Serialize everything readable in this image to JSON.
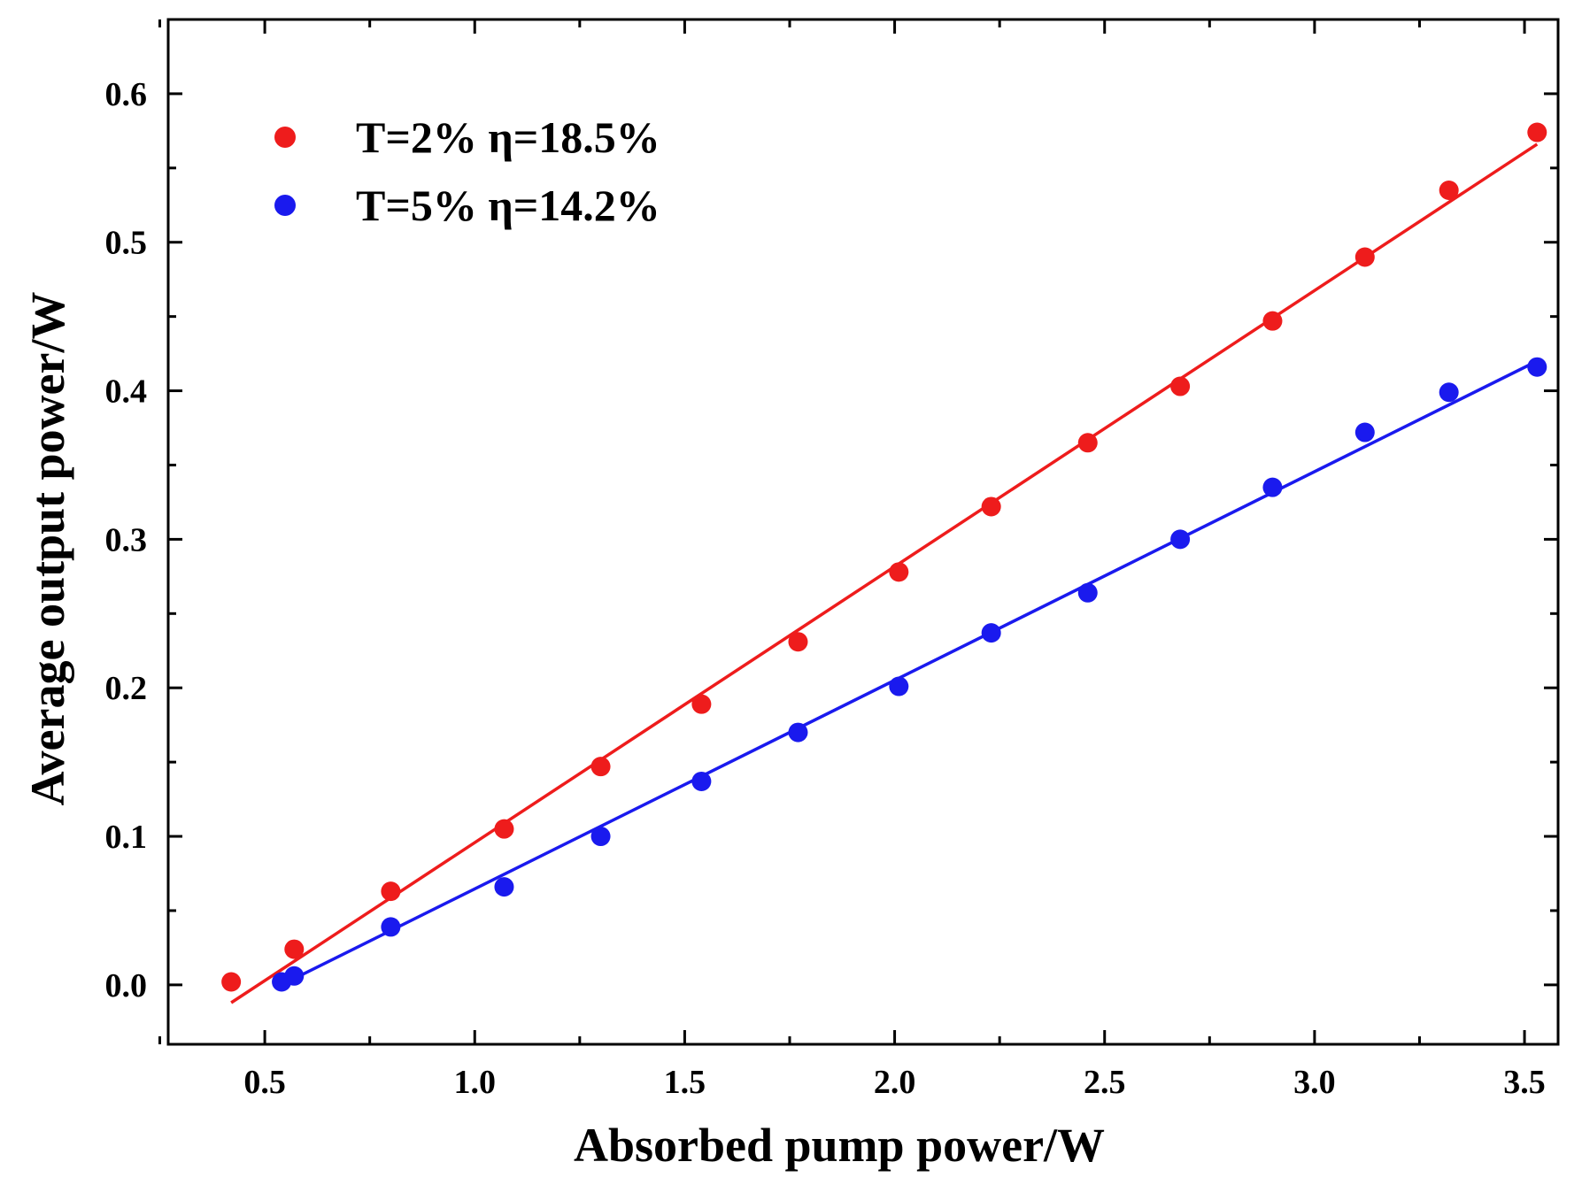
{
  "chart_data": {
    "type": "scatter",
    "title": "",
    "xlabel": "Absorbed pump power/W",
    "ylabel": "Average output power/W",
    "xlim": [
      0.27,
      3.58
    ],
    "ylim": [
      -0.04,
      0.65
    ],
    "x_ticks": [
      0.5,
      1.0,
      1.5,
      2.0,
      2.5,
      3.0,
      3.5
    ],
    "x_tick_labels": [
      "0.5",
      "1.0",
      "1.5",
      "2.0",
      "2.5",
      "3.0",
      "3.5"
    ],
    "y_ticks": [
      0.0,
      0.1,
      0.2,
      0.3,
      0.4,
      0.5,
      0.6
    ],
    "y_tick_labels": [
      "0.0",
      "0.1",
      "0.2",
      "0.3",
      "0.4",
      "0.5",
      "0.6"
    ],
    "grid": false,
    "legend_position": "top-left",
    "series": [
      {
        "name": "T=2% η=18.5%",
        "color": "#ee1c1c",
        "x": [
          0.42,
          0.57,
          0.8,
          1.07,
          1.3,
          1.54,
          1.77,
          2.01,
          2.23,
          2.46,
          2.68,
          2.9,
          3.12,
          3.32,
          3.53
        ],
        "y": [
          0.002,
          0.024,
          0.063,
          0.105,
          0.147,
          0.189,
          0.231,
          0.278,
          0.322,
          0.365,
          0.403,
          0.447,
          0.49,
          0.535,
          0.574
        ],
        "fit": {
          "x": [
            0.42,
            3.53
          ],
          "y": [
            -0.012,
            0.566
          ]
        }
      },
      {
        "name": "T=5% η=14.2%",
        "color": "#1a1aee",
        "x": [
          0.54,
          0.57,
          0.8,
          1.07,
          1.3,
          1.54,
          1.77,
          2.01,
          2.23,
          2.46,
          2.68,
          2.9,
          3.12,
          3.32,
          3.53
        ],
        "y": [
          0.002,
          0.006,
          0.039,
          0.066,
          0.1,
          0.137,
          0.17,
          0.201,
          0.237,
          0.264,
          0.3,
          0.335,
          0.372,
          0.399,
          0.416
        ],
        "fit": {
          "x": [
            0.54,
            3.53
          ],
          "y": [
            0.0,
            0.42
          ]
        }
      }
    ]
  }
}
